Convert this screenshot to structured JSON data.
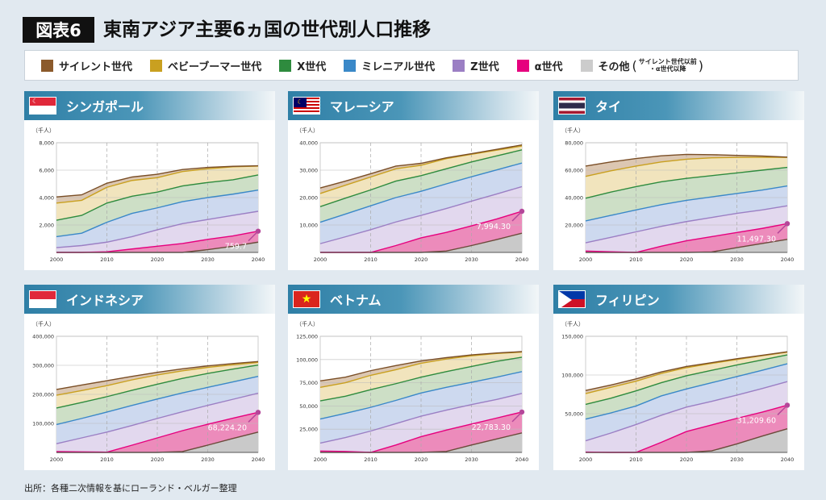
{
  "header": {
    "badge": "図表6",
    "title": "東南アジア主要6ヵ国の世代別人口推移"
  },
  "legend": {
    "items": [
      {
        "key": "silent",
        "label": "サイレント世代",
        "color": "#8b5a2b"
      },
      {
        "key": "boomer",
        "label": "ベビーブーマー世代",
        "color": "#c9a020"
      },
      {
        "key": "x",
        "label": "X世代",
        "color": "#2e8b3e"
      },
      {
        "key": "millennial",
        "label": "ミレニアル世代",
        "color": "#3a88c8"
      },
      {
        "key": "z",
        "label": "Z世代",
        "color": "#9b7fc4"
      },
      {
        "key": "alpha",
        "label": "α世代",
        "color": "#e6007e"
      },
      {
        "key": "other",
        "label": "その他",
        "color": "#cccccc"
      }
    ],
    "other_note_line1": "サイレント世代以前",
    "other_note_line2": "・α世代以降",
    "paren_open": "(",
    "paren_close": ")"
  },
  "source": "出所：各種二次情報を基にローランド・ベルガー整理",
  "chart_data": [
    {
      "type": "area",
      "stacked": true,
      "values_are_cumulative": true,
      "country": "シンガポール",
      "flag": "sg",
      "unit_label": "（千人）",
      "x": [
        2000,
        2005,
        2010,
        2015,
        2020,
        2025,
        2030,
        2035,
        2040
      ],
      "xticks": [
        2000,
        2010,
        2020,
        2030,
        2040
      ],
      "ylim": [
        0,
        8000
      ],
      "yticks": [
        2000,
        4000,
        6000,
        8000
      ],
      "annotation": "759.7",
      "series": [
        {
          "key": "other",
          "values": [
            0,
            0,
            0,
            0,
            0,
            0,
            200,
            450,
            750
          ]
        },
        {
          "key": "alpha",
          "values": [
            0,
            0,
            50,
            250,
            450,
            650,
            950,
            1200,
            1550
          ]
        },
        {
          "key": "z",
          "values": [
            350,
            500,
            750,
            1150,
            1650,
            2100,
            2400,
            2700,
            3000
          ]
        },
        {
          "key": "millennial",
          "values": [
            1150,
            1400,
            2200,
            2850,
            3250,
            3700,
            4000,
            4250,
            4550
          ]
        },
        {
          "key": "x",
          "values": [
            2350,
            2700,
            3600,
            4100,
            4400,
            4850,
            5100,
            5300,
            5650
          ]
        },
        {
          "key": "boomer",
          "values": [
            3600,
            3800,
            4750,
            5250,
            5450,
            5900,
            6100,
            6250,
            6300
          ]
        },
        {
          "key": "silent",
          "values": [
            4050,
            4200,
            5050,
            5500,
            5700,
            6050,
            6200,
            6280,
            6320
          ]
        }
      ]
    },
    {
      "type": "area",
      "stacked": true,
      "values_are_cumulative": true,
      "country": "マレーシア",
      "flag": "my",
      "unit_label": "（千人）",
      "x": [
        2000,
        2005,
        2010,
        2015,
        2020,
        2025,
        2030,
        2035,
        2040
      ],
      "xticks": [
        2000,
        2010,
        2020,
        2030,
        2040
      ],
      "ylim": [
        0,
        40000
      ],
      "yticks": [
        10000,
        20000,
        30000,
        40000
      ],
      "annotation": "7,994.30",
      "series": [
        {
          "key": "other",
          "values": [
            0,
            0,
            0,
            0,
            0,
            500,
            2500,
            4700,
            7000
          ]
        },
        {
          "key": "alpha",
          "values": [
            0,
            0,
            0,
            2500,
            5300,
            7300,
            9700,
            12200,
            15000
          ]
        },
        {
          "key": "z",
          "values": [
            3200,
            5700,
            8300,
            11100,
            13500,
            16000,
            18700,
            21300,
            24000
          ]
        },
        {
          "key": "millennial",
          "values": [
            11000,
            14000,
            17000,
            20000,
            22300,
            25000,
            27600,
            30100,
            32600
          ]
        },
        {
          "key": "x",
          "values": [
            16700,
            19800,
            22800,
            26000,
            28000,
            30500,
            33000,
            35200,
            37400
          ]
        },
        {
          "key": "boomer",
          "values": [
            21500,
            24500,
            27500,
            30500,
            31800,
            34200,
            35800,
            37300,
            38800
          ]
        },
        {
          "key": "silent",
          "values": [
            23500,
            26000,
            28700,
            31500,
            32500,
            34500,
            36000,
            37600,
            39200
          ]
        }
      ]
    },
    {
      "type": "area",
      "stacked": true,
      "values_are_cumulative": true,
      "country": "タイ",
      "flag": "th",
      "unit_label": "（千人）",
      "x": [
        2000,
        2005,
        2010,
        2015,
        2020,
        2025,
        2030,
        2035,
        2040
      ],
      "xticks": [
        2000,
        2010,
        2020,
        2030,
        2040
      ],
      "ylim": [
        0,
        80000
      ],
      "yticks": [
        20000,
        40000,
        60000,
        80000
      ],
      "annotation": "11,497.30",
      "series": [
        {
          "key": "other",
          "values": [
            0,
            0,
            0,
            0,
            0,
            300,
            3500,
            6500,
            9500
          ]
        },
        {
          "key": "alpha",
          "values": [
            1000,
            500,
            0,
            4500,
            8500,
            11500,
            14500,
            17500,
            21000
          ]
        },
        {
          "key": "z",
          "values": [
            7000,
            11000,
            15000,
            19000,
            22500,
            25500,
            28500,
            31000,
            34000
          ]
        },
        {
          "key": "millennial",
          "values": [
            23000,
            27000,
            31000,
            34800,
            38000,
            40500,
            43000,
            45500,
            48500
          ]
        },
        {
          "key": "x",
          "values": [
            39500,
            44000,
            48000,
            51500,
            54000,
            56000,
            58000,
            60000,
            62000
          ]
        },
        {
          "key": "boomer",
          "values": [
            55500,
            59500,
            63000,
            66000,
            68000,
            69000,
            69300,
            69400,
            69300
          ]
        },
        {
          "key": "silent",
          "values": [
            63000,
            66000,
            68500,
            70500,
            71500,
            71300,
            70800,
            70300,
            69500
          ]
        }
      ]
    },
    {
      "type": "area",
      "stacked": true,
      "values_are_cumulative": true,
      "country": "インドネシア",
      "flag": "id",
      "unit_label": "（千人）",
      "x": [
        2000,
        2005,
        2010,
        2015,
        2020,
        2025,
        2030,
        2035,
        2040
      ],
      "xticks": [
        2000,
        2010,
        2020,
        2030,
        2040
      ],
      "ylim": [
        0,
        400000
      ],
      "yticks": [
        100000,
        200000,
        300000,
        400000
      ],
      "annotation": "68,224.20",
      "series": [
        {
          "key": "other",
          "values": [
            0,
            0,
            0,
            0,
            0,
            3000,
            25000,
            48000,
            70000
          ]
        },
        {
          "key": "alpha",
          "values": [
            3000,
            2000,
            1000,
            25000,
            50000,
            75000,
            97000,
            118000,
            138000
          ]
        },
        {
          "key": "z",
          "values": [
            30000,
            50000,
            70000,
            93000,
            117000,
            140000,
            162000,
            183000,
            204000
          ]
        },
        {
          "key": "millennial",
          "values": [
            96000,
            117000,
            139000,
            162000,
            184000,
            205000,
            224000,
            243000,
            262000
          ]
        },
        {
          "key": "x",
          "values": [
            153000,
            172000,
            192000,
            214000,
            235000,
            255000,
            272000,
            287000,
            301000
          ]
        },
        {
          "key": "boomer",
          "values": [
            197000,
            213000,
            230000,
            250000,
            267000,
            281000,
            293000,
            302000,
            310000
          ]
        },
        {
          "key": "silent",
          "values": [
            217000,
            232000,
            247000,
            262000,
            276000,
            288000,
            298000,
            306000,
            313000
          ]
        }
      ]
    },
    {
      "type": "area",
      "stacked": true,
      "values_are_cumulative": true,
      "country": "ベトナム",
      "flag": "vn",
      "unit_label": "（千人）",
      "x": [
        2000,
        2005,
        2010,
        2015,
        2020,
        2025,
        2030,
        2035,
        2040
      ],
      "xticks": [
        2000,
        2010,
        2020,
        2030,
        2040
      ],
      "ylim": [
        0,
        125000
      ],
      "yticks": [
        25000,
        50000,
        75000,
        100000,
        125000
      ],
      "annotation": "22,783.30",
      "series": [
        {
          "key": "other",
          "values": [
            0,
            0,
            0,
            0,
            0,
            1000,
            8000,
            14500,
            21000
          ]
        },
        {
          "key": "alpha",
          "values": [
            1500,
            1000,
            0,
            8000,
            17000,
            24000,
            30500,
            37000,
            43500
          ]
        },
        {
          "key": "z",
          "values": [
            10000,
            16000,
            23000,
            31000,
            39000,
            45500,
            51500,
            57000,
            63500
          ]
        },
        {
          "key": "millennial",
          "values": [
            36000,
            42000,
            48500,
            56000,
            64000,
            70000,
            75500,
            81000,
            87000
          ]
        },
        {
          "key": "x",
          "values": [
            55500,
            60500,
            67500,
            74000,
            81000,
            87000,
            92500,
            98000,
            102500
          ]
        },
        {
          "key": "boomer",
          "values": [
            70000,
            75000,
            83000,
            89000,
            96000,
            100500,
            104000,
            106500,
            108000
          ]
        },
        {
          "key": "silent",
          "values": [
            77000,
            81000,
            88000,
            93500,
            98500,
            102000,
            105000,
            107000,
            108500
          ]
        }
      ]
    },
    {
      "type": "area",
      "stacked": true,
      "values_are_cumulative": true,
      "country": "フィリピン",
      "flag": "ph",
      "unit_label": "（千人）",
      "x": [
        2000,
        2005,
        2010,
        2015,
        2020,
        2025,
        2030,
        2035,
        2040
      ],
      "xticks": [
        2000,
        2010,
        2020,
        2030,
        2040
      ],
      "ylim": [
        0,
        150000
      ],
      "yticks": [
        50000,
        100000,
        150000
      ],
      "annotation": "31,209.60",
      "series": [
        {
          "key": "other",
          "values": [
            0,
            0,
            0,
            0,
            0,
            2000,
            11000,
            21000,
            30500
          ]
        },
        {
          "key": "alpha",
          "values": [
            500,
            0,
            0,
            13000,
            27000,
            35500,
            44000,
            52000,
            61000
          ]
        },
        {
          "key": "z",
          "values": [
            15000,
            25000,
            36000,
            48000,
            58500,
            66000,
            74000,
            82500,
            91500
          ]
        },
        {
          "key": "millennial",
          "values": [
            43000,
            51000,
            60000,
            73000,
            82000,
            90000,
            98000,
            106000,
            114500
          ]
        },
        {
          "key": "x",
          "values": [
            62000,
            70000,
            79500,
            90000,
            99000,
            106000,
            113000,
            119500,
            126000
          ]
        },
        {
          "key": "boomer",
          "values": [
            76000,
            84000,
            92000,
            102000,
            109500,
            115000,
            120000,
            125000,
            129500
          ]
        },
        {
          "key": "silent",
          "values": [
            80000,
            87000,
            95000,
            104000,
            111000,
            116000,
            121000,
            125500,
            130000
          ]
        }
      ]
    }
  ]
}
